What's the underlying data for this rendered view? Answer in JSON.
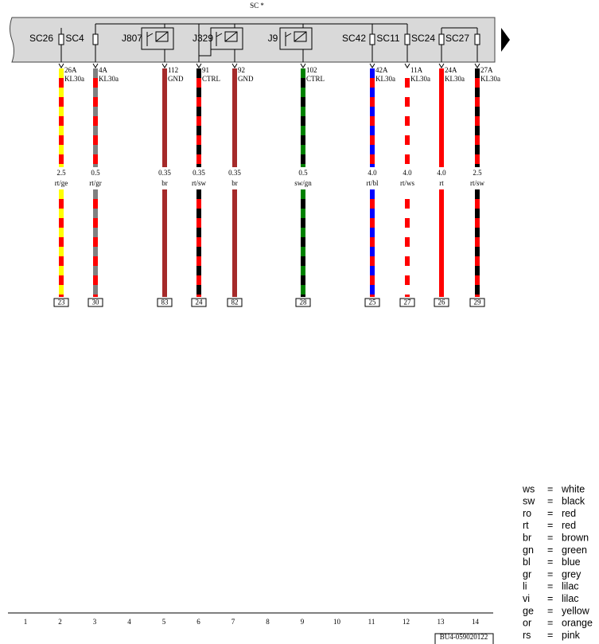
{
  "header": {
    "title": "SC *"
  },
  "bar_labels": [
    "SC26",
    "SC4",
    "J807",
    "J329",
    "J9",
    "SC42",
    "SC11",
    "SC24",
    "SC27"
  ],
  "wires": [
    {
      "terminal": "26A",
      "function": "KL30a",
      "size": "2.5",
      "color": "rt/ge",
      "pin": "23"
    },
    {
      "terminal": "4A",
      "function": "KL30a",
      "size": "0.5",
      "color": "rt/gr",
      "pin": "30"
    },
    {
      "terminal": "112",
      "function": "GND",
      "size": "0.35",
      "color": "br",
      "pin": "83"
    },
    {
      "terminal": "91",
      "function": "CTRL",
      "size": "0.35",
      "color": "rt/sw",
      "pin": "24"
    },
    {
      "terminal": "92",
      "function": "GND",
      "size": "0.35",
      "color": "br",
      "pin": "82"
    },
    {
      "terminal": "102",
      "function": "CTRL",
      "size": "0.5",
      "color": "sw/gn",
      "pin": "28"
    },
    {
      "terminal": "42A",
      "function": "KL30a",
      "size": "4.0",
      "color": "rt/bl",
      "pin": "25"
    },
    {
      "terminal": "11A",
      "function": "KL30a",
      "size": "4.0",
      "color": "rt/ws",
      "pin": "27"
    },
    {
      "terminal": "24A",
      "function": "KL30a",
      "size": "4.0",
      "color": "rt",
      "pin": "26"
    },
    {
      "terminal": "27A",
      "function": "KL30a",
      "size": "2.5",
      "color": "rt/sw",
      "pin": "29"
    }
  ],
  "grid_numbers": [
    "1",
    "2",
    "3",
    "4",
    "5",
    "6",
    "7",
    "8",
    "9",
    "10",
    "11",
    "12",
    "13",
    "14"
  ],
  "footer": {
    "code": "BU4-059020122"
  },
  "legend_separator": "=",
  "legend": [
    {
      "code": "ws",
      "meaning": "white"
    },
    {
      "code": "sw",
      "meaning": "black"
    },
    {
      "code": "ro",
      "meaning": "red"
    },
    {
      "code": "rt",
      "meaning": "red"
    },
    {
      "code": "br",
      "meaning": "brown"
    },
    {
      "code": "gn",
      "meaning": "green"
    },
    {
      "code": "bl",
      "meaning": "blue"
    },
    {
      "code": "gr",
      "meaning": "grey"
    },
    {
      "code": "li",
      "meaning": "lilac"
    },
    {
      "code": "vi",
      "meaning": "lilac"
    },
    {
      "code": "ge",
      "meaning": "yellow"
    },
    {
      "code": "or",
      "meaning": "orange"
    },
    {
      "code": "rs",
      "meaning": "pink"
    }
  ]
}
